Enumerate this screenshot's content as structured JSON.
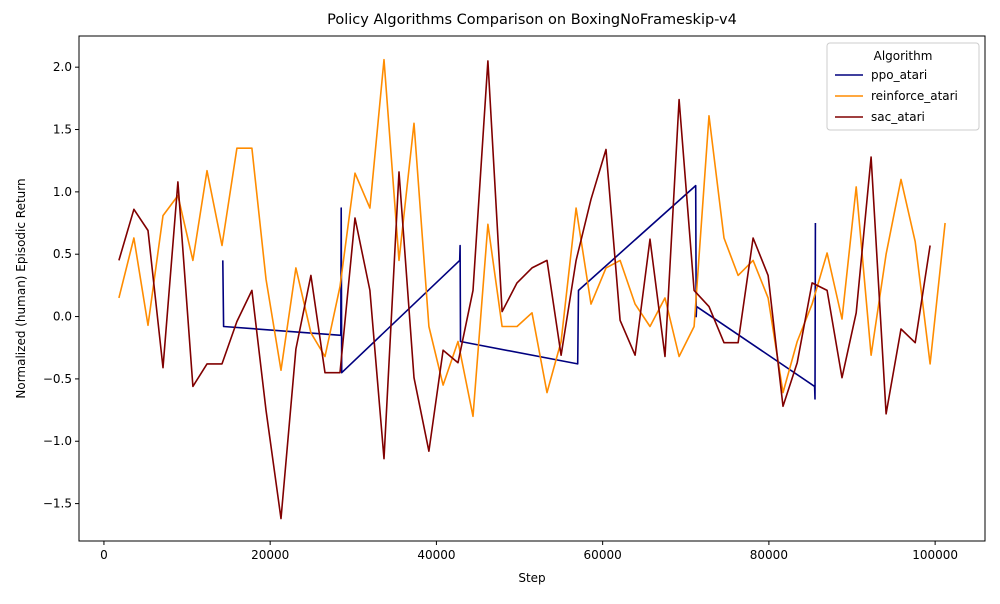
{
  "chart_data": {
    "type": "line",
    "title": "Policy Algorithms Comparison on BoxingNoFrameskip-v4",
    "xlabel": "Step",
    "ylabel": "Normalized (human) Episodic Return",
    "xlim": [
      -3000,
      106000
    ],
    "ylim": [
      -1.8,
      2.25
    ],
    "xticks": [
      0,
      20000,
      40000,
      60000,
      80000,
      100000
    ],
    "yticks": [
      -1.5,
      -1.0,
      -0.5,
      0.0,
      0.5,
      1.0,
      1.5,
      2.0
    ],
    "grid": false,
    "legend": {
      "title": "Algorithm",
      "placement": "top-right"
    },
    "series": [
      {
        "name": "ppo_atari",
        "color": "#00007f",
        "x": [
          14300,
          14400,
          28500,
          28550,
          28600,
          42800,
          42850,
          42900,
          57000,
          57100,
          71200,
          71250,
          71300,
          85500,
          85550,
          85600
        ],
        "y": [
          0.45,
          -0.08,
          -0.15,
          0.87,
          -0.45,
          0.45,
          0.57,
          -0.2,
          -0.38,
          0.21,
          1.05,
          0.0,
          0.08,
          -0.56,
          -0.66,
          0.75
        ]
      },
      {
        "name": "reinforce_atari",
        "color": "#ff8c00",
        "x": [
          1800,
          3600,
          5300,
          7100,
          8900,
          10700,
          12400,
          14200,
          16000,
          17800,
          19500,
          21300,
          23100,
          24900,
          26600,
          28400,
          30200,
          32000,
          33700,
          35500,
          37300,
          39100,
          40800,
          42600,
          44400,
          46200,
          47900,
          49700,
          51500,
          53300,
          55000,
          56800,
          58600,
          60400,
          62100,
          63900,
          65700,
          67500,
          69200,
          71000,
          72800,
          74600,
          76300,
          78100,
          79900,
          81700,
          83400,
          85200,
          87000,
          88800,
          90500,
          92300,
          94100,
          95900,
          97600,
          99400,
          101200
        ],
        "y": [
          0.15,
          0.63,
          -0.07,
          0.81,
          0.97,
          0.45,
          1.17,
          0.57,
          1.35,
          1.35,
          0.3,
          -0.43,
          0.39,
          -0.13,
          -0.32,
          0.24,
          1.15,
          0.87,
          2.06,
          0.45,
          1.55,
          -0.08,
          -0.55,
          -0.2,
          -0.8,
          0.74,
          -0.08,
          -0.08,
          0.03,
          -0.61,
          -0.2,
          0.87,
          0.1,
          0.39,
          0.45,
          0.1,
          -0.08,
          0.15,
          -0.32,
          -0.08,
          1.61,
          0.63,
          0.33,
          0.45,
          0.15,
          -0.61,
          -0.2,
          0.1,
          0.51,
          -0.02,
          1.04,
          -0.31,
          0.5,
          1.1,
          0.6,
          -0.38,
          0.75
        ]
      },
      {
        "name": "sac_atari",
        "color": "#800000",
        "x": [
          1800,
          3600,
          5300,
          7100,
          8900,
          10700,
          12400,
          14200,
          16000,
          17800,
          19500,
          21300,
          23100,
          24900,
          26600,
          28400,
          30200,
          32000,
          33700,
          35500,
          37300,
          39100,
          40800,
          42600,
          44400,
          46200,
          47900,
          49700,
          51500,
          53300,
          55000,
          56800,
          58600,
          60400,
          62100,
          63900,
          65700,
          67500,
          69200,
          71000,
          72800,
          74600,
          76300,
          78100,
          79900,
          81700,
          83400,
          85200,
          87000,
          88800,
          90500,
          92300,
          94100,
          95900,
          97600,
          99400
        ],
        "y": [
          0.45,
          0.86,
          0.69,
          -0.41,
          1.08,
          -0.56,
          -0.38,
          -0.38,
          -0.04,
          0.21,
          -0.75,
          -1.62,
          -0.26,
          0.33,
          -0.45,
          -0.45,
          0.79,
          0.21,
          -1.14,
          1.16,
          -0.49,
          -1.08,
          -0.27,
          -0.37,
          0.21,
          2.05,
          0.04,
          0.27,
          0.39,
          0.45,
          -0.31,
          0.45,
          0.94,
          1.34,
          -0.03,
          -0.31,
          0.62,
          -0.32,
          1.74,
          0.21,
          0.08,
          -0.21,
          -0.21,
          0.63,
          0.33,
          -0.72,
          -0.37,
          0.27,
          0.21,
          -0.49,
          0.03,
          1.28,
          -0.78,
          -0.1,
          -0.21,
          0.57
        ]
      }
    ]
  }
}
